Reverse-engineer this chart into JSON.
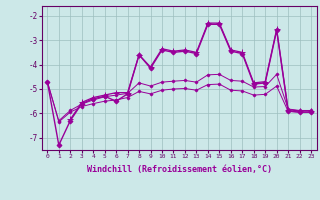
{
  "xlabel": "Windchill (Refroidissement éolien,°C)",
  "background_color": "#cce8e8",
  "line_color": "#990099",
  "grid_color": "#9dbfbf",
  "xlim": [
    -0.5,
    23.5
  ],
  "ylim": [
    -7.5,
    -1.6
  ],
  "yticks": [
    -7,
    -6,
    -5,
    -4,
    -3,
    -2
  ],
  "xticks": [
    0,
    1,
    2,
    3,
    4,
    5,
    6,
    7,
    8,
    9,
    10,
    11,
    12,
    13,
    14,
    15,
    16,
    17,
    18,
    19,
    20,
    21,
    22,
    23
  ],
  "series": [
    {
      "x": [
        0,
        1,
        2,
        3,
        4,
        5,
        6,
        7,
        8,
        9,
        10,
        11,
        12,
        13,
        14,
        15,
        16,
        17,
        18,
        19,
        20,
        21,
        22,
        23
      ],
      "y": [
        -4.7,
        -7.3,
        -6.3,
        -5.6,
        -5.4,
        -5.3,
        -5.5,
        -5.2,
        -3.6,
        -4.15,
        -3.4,
        -3.5,
        -3.45,
        -3.55,
        -2.35,
        -2.35,
        -3.45,
        -3.55,
        -4.8,
        -4.75,
        -2.6,
        -5.9,
        -5.95,
        -5.95
      ],
      "marker": "D",
      "markersize": 2.5,
      "linewidth": 1.0
    },
    {
      "x": [
        2,
        3,
        4,
        5,
        6,
        7,
        8,
        9,
        10,
        11,
        12,
        13,
        14,
        15,
        16,
        17,
        18,
        19,
        20,
        21,
        22,
        23
      ],
      "y": [
        -6.25,
        -5.55,
        -5.35,
        -5.25,
        -5.15,
        -5.15,
        -3.6,
        -4.1,
        -3.35,
        -3.45,
        -3.4,
        -3.5,
        -2.3,
        -2.3,
        -3.4,
        -3.5,
        -4.75,
        -4.7,
        -2.55,
        -5.85,
        -5.9,
        -5.9
      ],
      "marker": "+",
      "markersize": 4,
      "linewidth": 0.9
    },
    {
      "x": [
        0,
        1,
        2,
        3,
        4,
        5,
        6,
        7,
        8,
        9,
        10,
        11,
        12,
        13,
        14,
        15,
        16,
        17,
        18,
        19,
        20,
        21,
        22,
        23
      ],
      "y": [
        -4.7,
        -6.35,
        -5.95,
        -5.72,
        -5.6,
        -5.5,
        -5.45,
        -5.35,
        -5.1,
        -5.2,
        -5.05,
        -5.0,
        -4.98,
        -5.05,
        -4.82,
        -4.8,
        -5.05,
        -5.08,
        -5.25,
        -5.22,
        -4.88,
        -5.92,
        -5.95,
        -5.95
      ],
      "marker": "D",
      "markersize": 1.5,
      "linewidth": 0.7
    },
    {
      "x": [
        0,
        1,
        2,
        3,
        4,
        5,
        6,
        7,
        8,
        9,
        10,
        11,
        12,
        13,
        14,
        15,
        16,
        17,
        18,
        19,
        20,
        21,
        22,
        23
      ],
      "y": [
        -4.7,
        -6.3,
        -5.88,
        -5.62,
        -5.45,
        -5.32,
        -5.25,
        -5.18,
        -4.75,
        -4.88,
        -4.72,
        -4.68,
        -4.65,
        -4.72,
        -4.42,
        -4.4,
        -4.65,
        -4.68,
        -4.92,
        -4.9,
        -4.4,
        -5.82,
        -5.88,
        -5.88
      ],
      "marker": "D",
      "markersize": 1.5,
      "linewidth": 0.7
    }
  ]
}
